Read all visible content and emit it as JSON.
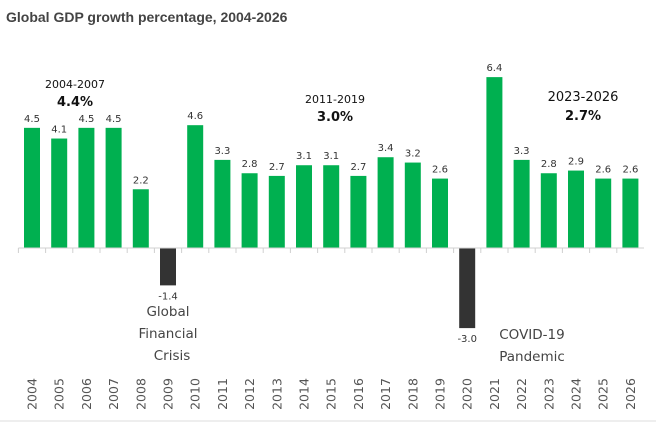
{
  "chart_data": {
    "type": "bar",
    "title": "Global GDP growth percentage, 2004-2026",
    "xlabel": "",
    "ylabel": "",
    "ylim": [
      -3.5,
      7
    ],
    "grid": false,
    "categories": [
      "2004",
      "2005",
      "2006",
      "2007",
      "2008",
      "2009",
      "2010",
      "2011",
      "2012",
      "2013",
      "2014",
      "2015",
      "2016",
      "2017",
      "2018",
      "2019",
      "2020",
      "2021",
      "2022",
      "2023",
      "2024",
      "2025",
      "2026"
    ],
    "values": [
      4.5,
      4.1,
      4.5,
      4.5,
      2.2,
      -1.4,
      4.6,
      3.3,
      2.8,
      2.7,
      3.1,
      3.1,
      2.7,
      3.4,
      3.2,
      2.6,
      -3.0,
      6.4,
      3.3,
      2.8,
      2.9,
      2.6,
      2.6
    ],
    "data_labels": [
      "4.5",
      "4.1",
      "4.5",
      "4.5",
      "2.2",
      "-1.4",
      "4.6",
      "3.3",
      "2.8",
      "2.7",
      "3.1",
      "3.1",
      "2.7",
      "3.4",
      "3.2",
      "2.6",
      "-3.0",
      "6.4",
      "3.3",
      "2.8",
      "2.9",
      "2.6",
      "2.6"
    ],
    "colors": {
      "positive": "#00b050",
      "negative": "#333333"
    },
    "annotations": [
      {
        "period": "2004-2007",
        "value": "4.4%"
      },
      {
        "period": "2011-2019",
        "value": "3.0%"
      },
      {
        "period": "2023-2026",
        "value": "2.7%"
      }
    ],
    "events": [
      {
        "lines": [
          "Global",
          "Financial",
          "Crisis"
        ]
      },
      {
        "lines": [
          "COVID-19",
          "Pandemic"
        ]
      }
    ]
  }
}
